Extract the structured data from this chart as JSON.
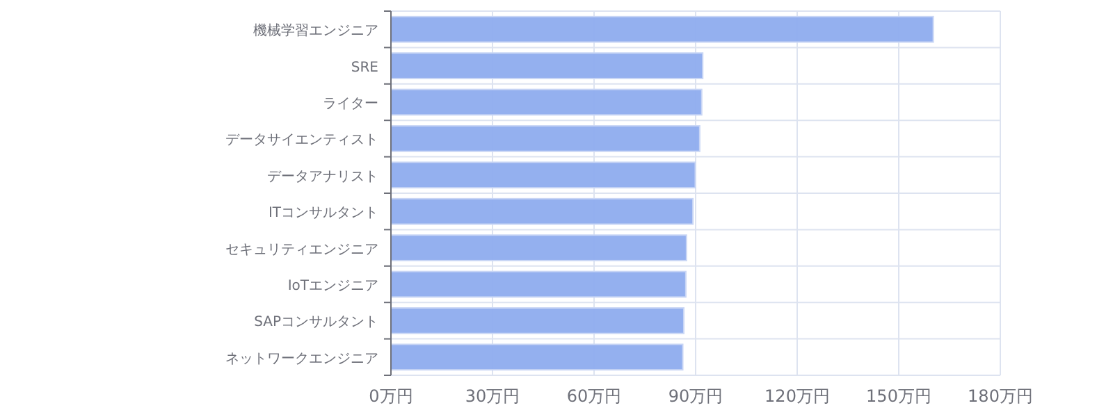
{
  "chart_data": {
    "type": "bar",
    "orientation": "horizontal",
    "categories": [
      "機械学習エンジニア",
      "SRE",
      "ライター",
      "データサイエンティスト",
      "データアナリスト",
      "ITコンサルタント",
      "セキュリティエンジニア",
      "IoTエンジニア",
      "SAPコンサルタント",
      "ネットワークエンジニア"
    ],
    "values": [
      160.2,
      92.1,
      91.8,
      91.2,
      89.9,
      89.2,
      87.3,
      87.1,
      86.5,
      86.2
    ],
    "color": "#8eacee",
    "xlim": [
      0,
      180
    ],
    "xticks": [
      {
        "value": 0,
        "label": "0万円"
      },
      {
        "value": 30,
        "label": "30万円"
      },
      {
        "value": 60,
        "label": "60万円"
      },
      {
        "value": 90,
        "label": "90万円"
      },
      {
        "value": 120,
        "label": "120万円"
      },
      {
        "value": 150,
        "label": "150万円"
      },
      {
        "value": 180,
        "label": "180万円"
      }
    ],
    "grid": true
  }
}
